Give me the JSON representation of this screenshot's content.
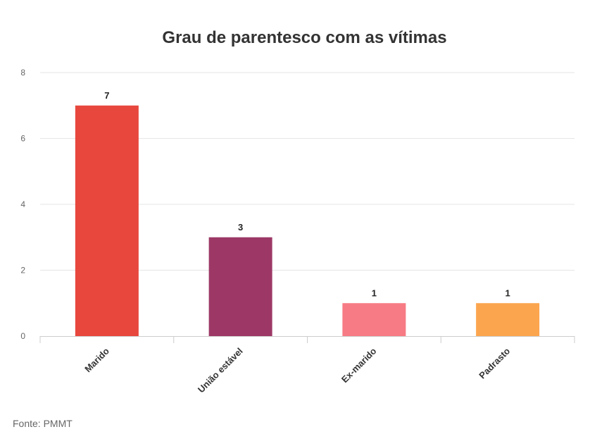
{
  "chart_data": {
    "type": "bar",
    "title": "Grau de parentesco com as vítimas",
    "categories": [
      "Marido",
      "União estável",
      "Ex-marido",
      "Padrasto"
    ],
    "values": [
      7,
      3,
      1,
      1
    ],
    "value_labels": [
      "7",
      "3",
      "1",
      "1"
    ],
    "colors": [
      "#e8473e",
      "#9d3866",
      "#f77b84",
      "#fca54f"
    ],
    "ylim": [
      0,
      8
    ],
    "yticks": [
      0,
      2,
      4,
      6,
      8
    ],
    "ytick_labels": [
      "0",
      "2",
      "4",
      "6",
      "8"
    ],
    "grid": true,
    "xlabel": "",
    "ylabel": ""
  },
  "source": "Fonte: PMMT"
}
